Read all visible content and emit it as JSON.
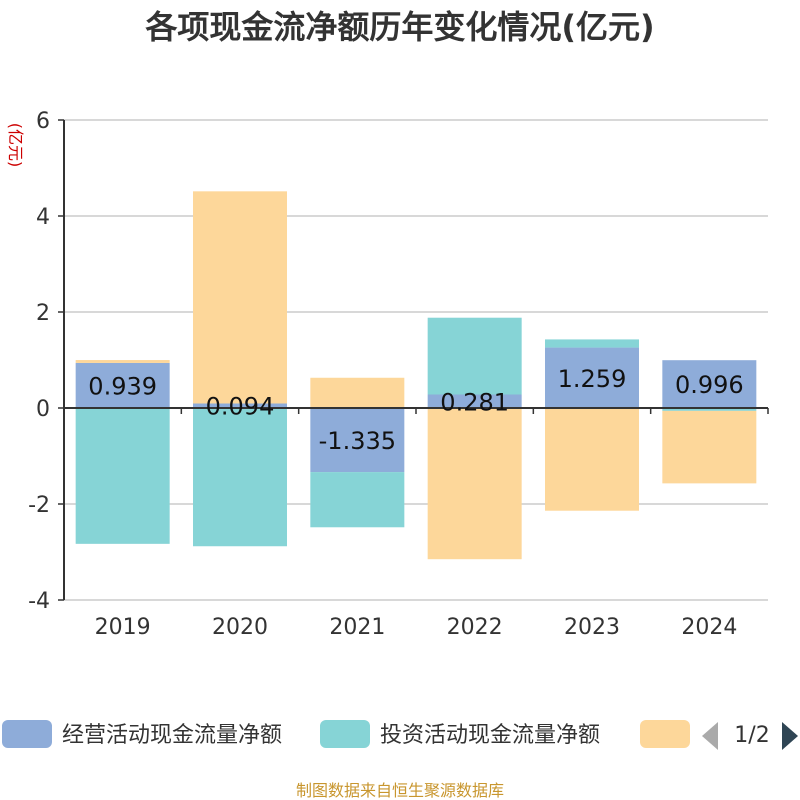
{
  "chart_data": {
    "type": "bar",
    "stacked": true,
    "title": "各项现金流净额历年变化情况(亿元)",
    "ylabel": "(亿元)",
    "xlabel": "",
    "categories": [
      "2019",
      "2020",
      "2021",
      "2022",
      "2023",
      "2024"
    ],
    "ylim": [
      -4,
      6
    ],
    "yticks": [
      -4,
      -2,
      0,
      2,
      4,
      6
    ],
    "grid": true,
    "legend_position": "bottom",
    "series": [
      {
        "name": "经营活动现金流量净额",
        "color": "#8eacd9",
        "values": [
          0.939,
          0.094,
          -1.335,
          0.281,
          1.259,
          0.996
        ],
        "labels": [
          "0.939",
          "0.094",
          "-1.335",
          "0.281",
          "1.259",
          "0.996"
        ]
      },
      {
        "name": "投资活动现金流量净额",
        "color": "#86d4d6",
        "values": [
          -2.83,
          -2.88,
          -1.15,
          1.6,
          0.17,
          -0.06
        ]
      },
      {
        "name": "",
        "color": "#fdd79a",
        "values": [
          0.06,
          4.42,
          0.63,
          -3.15,
          -2.14,
          -1.51
        ]
      }
    ]
  },
  "legend": {
    "page_indicator": "1/2",
    "prev_arrow": "prev-page-arrow",
    "next_arrow": "next-page-arrow"
  },
  "source": "制图数据来自恒生聚源数据库",
  "colors": {
    "axis": "#333333",
    "grid": "#cccccc",
    "unit_label": "#cc0000",
    "source": "#c8962e",
    "arrow_prev": "#aaaaaa",
    "arrow_next": "#2f4554"
  }
}
